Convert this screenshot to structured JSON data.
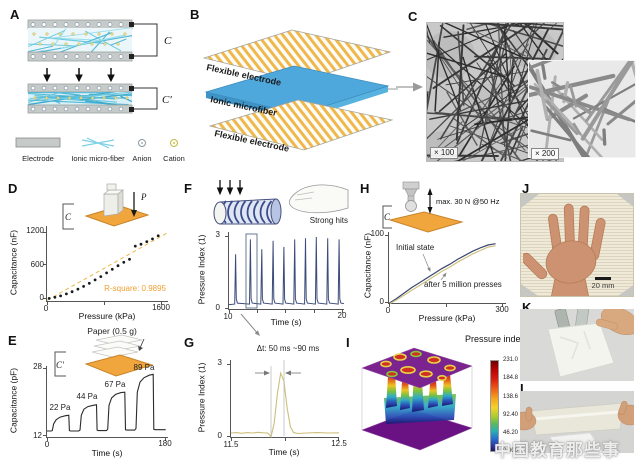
{
  "panels": {
    "A": {
      "label": "A",
      "cap_initial": "C",
      "cap_pressed": "C'",
      "legend": {
        "electrode": "Electrode",
        "fiber": "Ionic micro-fiber",
        "anion": "Anion",
        "cation": "Cation"
      }
    },
    "B": {
      "label": "B",
      "layer_top": "Flexible electrode",
      "layer_mid": "Ionic microfiber",
      "layer_bottom": "Flexible electrode"
    },
    "C": {
      "label": "C",
      "mag_main": "× 100",
      "mag_inset": "× 200"
    },
    "D": {
      "label": "D",
      "inset_cap": "C",
      "inset_force": "P"
    },
    "E": {
      "label": "E",
      "inset_title": "Paper (0.5 g)",
      "inset_cap": "C'"
    },
    "F": {
      "label": "F",
      "inset_label": "Strong hits"
    },
    "G": {
      "label": "G",
      "annotation": "Δt: 50 ms ~90 ms"
    },
    "H": {
      "label": "H",
      "inset_cap": "C",
      "inset_label": "max. 30 N @50 Hz"
    },
    "I": {
      "label": "I"
    },
    "J": {
      "label": "J",
      "scale_bar": "20 mm"
    },
    "K": {
      "label": "K"
    },
    "L": {
      "label": "L"
    }
  },
  "watermark": "中国教育那些事",
  "colors": {
    "electrode_amber": "#F0A63C",
    "stripe_amber": "#F0B84A",
    "fiber_cyan": "#7FD0E4",
    "ionic_blue": "#4FA8DC",
    "navy": "#3A4670",
    "tan": "#CFC27E",
    "annotation_orange": "#F0A030",
    "purple_plane": "#7B2490"
  },
  "chart_data": {
    "D": {
      "type": "scatter",
      "xlabel": "Pressure (kPa)",
      "ylabel": "Capacitance (nF)",
      "xlim": [
        0,
        1700
      ],
      "ylim": [
        -60,
        1300
      ],
      "xtick_labels": [
        "0",
        "1600"
      ],
      "ytick_labels": [
        "1200",
        "600",
        "0"
      ],
      "annotation": "R-square: 0.9895",
      "series": [
        {
          "name": "linear fit",
          "type": "line",
          "color": "#E9B94D",
          "dash": "4 3",
          "width": 1,
          "x": [
            0,
            1680
          ],
          "y": [
            -30,
            1180
          ]
        },
        {
          "name": "capacitance",
          "type": "scatter",
          "color": "#1a1a1a",
          "x": [
            30,
            110,
            190,
            270,
            350,
            430,
            510,
            590,
            670,
            750,
            830,
            910,
            990,
            1070,
            1150,
            1230,
            1310,
            1390,
            1470,
            1550
          ],
          "y": [
            5,
            25,
            50,
            85,
            125,
            170,
            220,
            275,
            335,
            395,
            460,
            525,
            590,
            650,
            705,
            940,
            975,
            1020,
            1070,
            1125
          ]
        }
      ]
    },
    "E": {
      "type": "line",
      "xlabel": "Time (s)",
      "ylabel": "Capacitance (pF)",
      "xlim": [
        0,
        185
      ],
      "ylim": [
        12,
        28.5
      ],
      "xtick_labels": [
        "0",
        "180"
      ],
      "ytick_labels": [
        "28",
        "12"
      ],
      "step_labels": [
        "22 Pa",
        "44 Pa",
        "67 Pa",
        "89 Pa"
      ],
      "series": [
        {
          "name": "capacitance",
          "type": "line",
          "color": "#2b2b2b",
          "width": 1.1,
          "x": [
            0,
            6,
            8,
            10,
            14,
            20,
            28,
            33,
            34,
            36,
            48,
            50,
            52,
            56,
            62,
            70,
            75,
            76,
            78,
            90,
            92,
            94,
            98,
            104,
            112,
            118,
            119,
            121,
            133,
            135,
            137,
            141,
            147,
            155,
            161,
            162,
            164,
            180
          ],
          "y": [
            13.6,
            13.6,
            13.7,
            15.2,
            16.2,
            16.8,
            17.1,
            17.2,
            13.7,
            13.6,
            13.6,
            13.8,
            17.2,
            18.6,
            19.2,
            19.5,
            19.6,
            13.8,
            13.7,
            13.7,
            14.0,
            19.5,
            21.2,
            22.0,
            22.4,
            22.5,
            13.9,
            13.8,
            13.8,
            14.2,
            22.5,
            24.8,
            25.8,
            26.4,
            26.6,
            14.0,
            13.9,
            13.9
          ]
        }
      ]
    },
    "F": {
      "type": "line",
      "xlabel": "Time (s)",
      "ylabel": "Pressure Index (1)",
      "xlim": [
        10,
        20.2
      ],
      "ylim": [
        0,
        3.15
      ],
      "xtick_labels": [
        "10",
        "20"
      ],
      "ytick_labels": [
        "3",
        "0"
      ],
      "series": [
        {
          "name": "pressure index",
          "type": "line",
          "color": "#3C4C7A",
          "width": 1,
          "x": [
            10,
            10.5,
            10.58,
            10.64,
            10.74,
            11.8,
            11.88,
            11.94,
            12.04,
            12.8,
            12.88,
            12.94,
            13.04,
            13.8,
            13.88,
            13.94,
            14.04,
            14.75,
            14.83,
            14.89,
            14.99,
            15.7,
            15.78,
            15.84,
            15.94,
            16.65,
            16.73,
            16.79,
            16.89,
            17.6,
            17.68,
            17.74,
            17.84,
            18.6,
            18.68,
            18.74,
            18.84,
            19.6,
            19.68,
            19.74,
            19.84,
            20.1
          ],
          "y": [
            0.22,
            0.24,
            2.25,
            0.45,
            0.28,
            0.24,
            2.85,
            0.45,
            0.28,
            0.24,
            2.45,
            0.45,
            0.28,
            0.24,
            2.8,
            0.45,
            0.28,
            0.24,
            2.55,
            0.45,
            0.28,
            0.24,
            2.85,
            0.45,
            0.28,
            0.24,
            2.9,
            0.45,
            0.28,
            0.24,
            2.95,
            0.45,
            0.28,
            0.24,
            2.9,
            0.45,
            0.28,
            0.24,
            2.85,
            0.45,
            0.28,
            0.26
          ]
        }
      ]
    },
    "G": {
      "type": "line",
      "xlabel": "Time (s)",
      "ylabel": "Pressure Index (1)",
      "xlim": [
        11.5,
        12.5
      ],
      "ylim": [
        0,
        3.15
      ],
      "xtick_labels": [
        "11.5",
        "12.5"
      ],
      "ytick_labels": [
        "3",
        "0"
      ],
      "annotation": "Δt: 50 ms ~90 ms",
      "series": [
        {
          "name": "pressure index",
          "type": "line",
          "color": "#CDBF7A",
          "width": 1.1,
          "x": [
            11.5,
            11.55,
            11.6,
            11.65,
            11.7,
            11.75,
            11.8,
            11.84,
            11.87,
            11.9,
            11.93,
            11.96,
            11.99,
            12.02,
            12.05,
            12.08,
            12.12,
            12.2,
            12.3,
            12.4,
            12.5
          ],
          "y": [
            0.2,
            0.22,
            0.19,
            0.22,
            0.2,
            0.23,
            0.21,
            0.2,
            0.05,
            0.6,
            1.8,
            2.62,
            2.3,
            1.2,
            0.45,
            0.22,
            0.18,
            0.2,
            0.22,
            0.2,
            0.21
          ]
        }
      ]
    },
    "H": {
      "type": "line",
      "xlabel": "Pressure (kPa)",
      "ylabel": "Capacitance (nF)",
      "xlim": [
        0,
        310
      ],
      "ylim": [
        0,
        105
      ],
      "xtick_labels": [
        "0",
        "300"
      ],
      "ytick_labels": [
        "100",
        "0"
      ],
      "series": [
        {
          "name": "Initial state",
          "type": "line",
          "color": "#3A4670",
          "width": 1.2,
          "x": [
            0,
            20,
            40,
            60,
            80,
            100,
            120,
            140,
            160,
            180,
            200,
            220,
            240,
            260,
            280
          ],
          "y": [
            1,
            8,
            16,
            24,
            31,
            38,
            45,
            52,
            58,
            65,
            71,
            77,
            82,
            86,
            88
          ]
        },
        {
          "name": "after 5 million presses",
          "type": "line",
          "color": "#CFC27E",
          "width": 1.2,
          "x": [
            0,
            20,
            40,
            60,
            80,
            100,
            120,
            140,
            160,
            180,
            200,
            220,
            240,
            260,
            280
          ],
          "y": [
            0,
            6,
            13,
            20,
            27,
            34,
            41,
            48,
            54,
            61,
            67,
            73,
            78,
            83,
            85
          ]
        }
      ]
    },
    "I": {
      "type": "heatmap",
      "colorbar_title": "Pressure index",
      "colorbar_ticks": [
        "231.0",
        "184.8",
        "138.6",
        "92.40",
        "46.20",
        "0.000"
      ]
    }
  }
}
